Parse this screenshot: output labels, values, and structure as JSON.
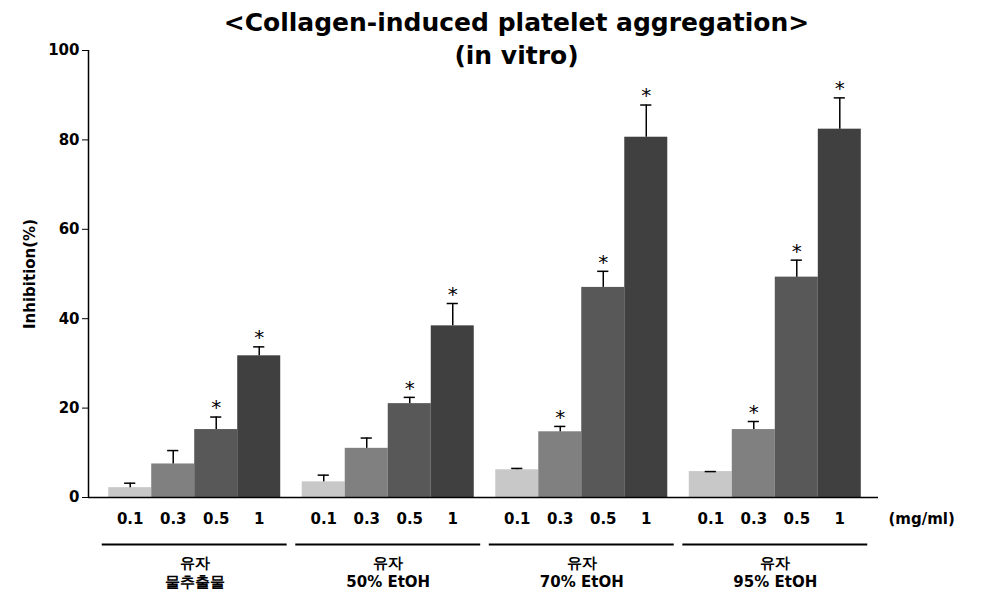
{
  "chart_data": {
    "type": "bar",
    "title": "<Collagen-induced platelet aggregation>",
    "subtitle": "(in vitro)",
    "y_label": "Inhibition(%)",
    "x_label": "(mg/ml)",
    "categories": [
      "유자\n물추출물",
      "유자\n50% EtOH",
      "유자\n70% EtOH",
      "유자\n95% EtOH"
    ],
    "series": [
      {
        "name": "0.1",
        "color": "#c8c8c8",
        "values": [
          2.2,
          3.5,
          6.2,
          5.8
        ],
        "errors": [
          1.0,
          1.5,
          0.3,
          0
        ],
        "annotations": [
          null,
          null,
          null,
          null
        ]
      },
      {
        "name": "0.3",
        "color": "#808080",
        "values": [
          7.5,
          11.0,
          14.7,
          15.2
        ],
        "errors": [
          3.0,
          2.3,
          1.2,
          1.8
        ],
        "annotations": [
          null,
          null,
          "*",
          "*"
        ]
      },
      {
        "name": "0.5",
        "color": "#585858",
        "values": [
          15.2,
          21.0,
          47.0,
          49.3
        ],
        "errors": [
          2.8,
          1.4,
          3.6,
          3.8
        ],
        "annotations": [
          "*",
          "*",
          "*",
          "*"
        ]
      },
      {
        "name": "1",
        "color": "#404040",
        "values": [
          31.7,
          38.4,
          80.6,
          82.4
        ],
        "errors": [
          2.0,
          5.0,
          7.2,
          7.0
        ],
        "annotations": [
          "*",
          "*",
          "*",
          "*"
        ]
      }
    ],
    "ylim": [
      0,
      100
    ],
    "yticks": [
      0,
      20,
      40,
      60,
      80,
      100
    ]
  }
}
